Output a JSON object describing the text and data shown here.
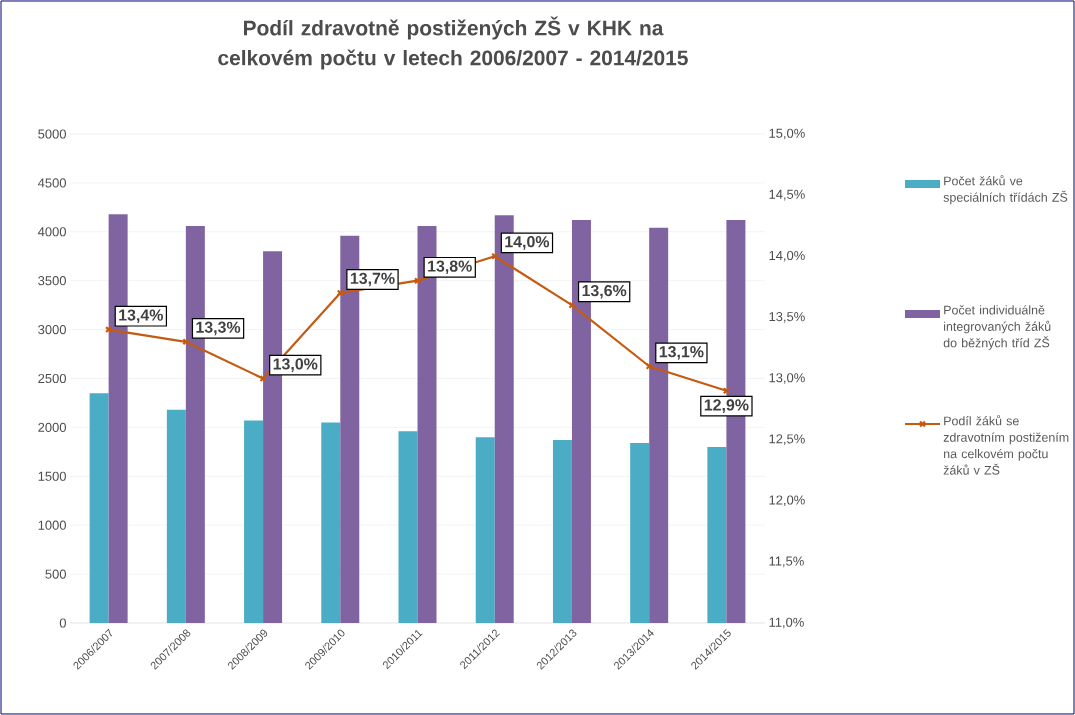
{
  "chart_data": {
    "type": "bar",
    "title": "Podíl zdravotně postižených ZŠ v KHK na celkovém počtu v letech 2006/2007 - 2014/2015",
    "categories": [
      "2006/2007",
      "2007/2008",
      "2008/2009",
      "2009/2010",
      "2010/2011",
      "2011/2012",
      "2012/2013",
      "2013/2014",
      "2014/2015"
    ],
    "series": [
      {
        "name": "Počet žáků ve speciálních třídách ZŠ",
        "color": "#4bacc6",
        "values": [
          2350,
          2180,
          2070,
          2050,
          1960,
          1900,
          1870,
          1840,
          1800
        ]
      },
      {
        "name": "Počet individuálně integrovaných žáků do běžných tříd ZŠ",
        "color": "#8064a2",
        "values": [
          4180,
          4060,
          3800,
          3960,
          4060,
          4170,
          4120,
          4040,
          4120
        ]
      },
      {
        "name": "Podíl žáků se zdravotním postižením na celkovém počtu žáků v ZŠ",
        "type": "line",
        "axis": "y2",
        "color": "#c55a11",
        "values": [
          13.4,
          13.3,
          13.0,
          13.7,
          13.8,
          14.0,
          13.6,
          13.1,
          12.9
        ],
        "value_labels": [
          "13,4%",
          "13,3%",
          "13,0%",
          "13,7%",
          "13,8%",
          "14,0%",
          "13,6%",
          "13,1%",
          "12,9%"
        ]
      }
    ],
    "ylim": [
      0,
      5000
    ],
    "yticks": [
      0,
      500,
      1000,
      1500,
      2000,
      2500,
      3000,
      3500,
      4000,
      4500,
      5000
    ],
    "y2lim": [
      11,
      15
    ],
    "y2ticks": [
      {
        "value": 11,
        "label": "11,0%"
      },
      {
        "value": 11.5,
        "label": "11,5%"
      },
      {
        "value": 12,
        "label": "12,0%"
      },
      {
        "value": 12.5,
        "label": "12,5%"
      },
      {
        "value": 13,
        "label": "13,0%"
      },
      {
        "value": 13.5,
        "label": "13,5%"
      },
      {
        "value": 14,
        "label": "14,0%"
      },
      {
        "value": 14.5,
        "label": "14,5%"
      },
      {
        "value": 15,
        "label": "15,0%"
      }
    ],
    "grid": "y",
    "legend": "right",
    "marker": "cross",
    "line_style": "solid"
  }
}
